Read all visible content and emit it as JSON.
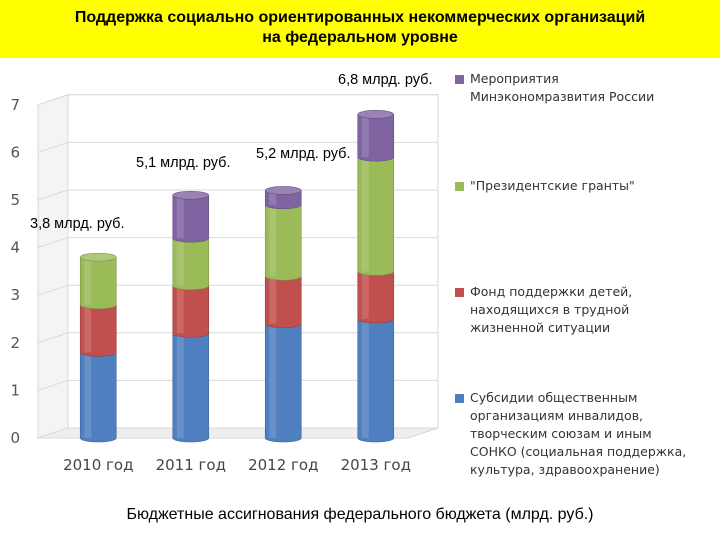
{
  "header": {
    "title_line1": "Поддержка социально ориентированных некоммерческих организаций",
    "title_line2": "на федеральном уровне"
  },
  "caption": "Бюджетные ассигнования федерального бюджета (млрд. руб.)",
  "chart_data": {
    "type": "bar",
    "stacked": true,
    "style": "3d",
    "categories": [
      "2010 год",
      "2011 год",
      "2012 год",
      "2013 год"
    ],
    "ylim": [
      0,
      7
    ],
    "yticks": [
      "0",
      "1",
      "2",
      "3",
      "4",
      "5",
      "6",
      "7"
    ],
    "grid": true,
    "legend_position": "right",
    "series": [
      {
        "name": "Субсидии общественным организациям инвалидов, творческим союзам и иным СОНКО (социальная поддержка, культура, здравоохранение)",
        "values": [
          1.8,
          2.2,
          2.4,
          2.5
        ],
        "color": "#4f7fc0"
      },
      {
        "name": "Фонд поддержки детей, находящихся в трудной жизненной ситуации",
        "values": [
          1.0,
          1.0,
          1.0,
          1.0
        ],
        "color": "#c0504d"
      },
      {
        "name": "\"Президентские гранты\"",
        "values": [
          1.0,
          1.0,
          1.5,
          2.4
        ],
        "color": "#9bbb59"
      },
      {
        "name": "Мероприятия Минэкономразвития России",
        "values": [
          0,
          0.9,
          0.3,
          0.9
        ],
        "color": "#8064a2"
      }
    ],
    "total_labels": [
      "3,8 млрд. руб.",
      "5,1 млрд. руб.",
      "5,2 млрд. руб.",
      "6,8 млрд. руб."
    ]
  },
  "legend": [
    {
      "label": "Мероприятия\nМинэкономразвития России",
      "color": "#8064a2"
    },
    {
      "label": "\"Президентские гранты\"",
      "color": "#9bbb59"
    },
    {
      "label": "Фонд поддержки детей,\nнаходящихся в трудной\nжизненной ситуации",
      "color": "#c0504d"
    },
    {
      "label": "Субсидии общественным\nорганизациям инвалидов,\nтворческим союзам и иным\nСОНКО (социальная поддержка,\nкультура, здравоохранение)",
      "color": "#4f7fc0"
    }
  ]
}
